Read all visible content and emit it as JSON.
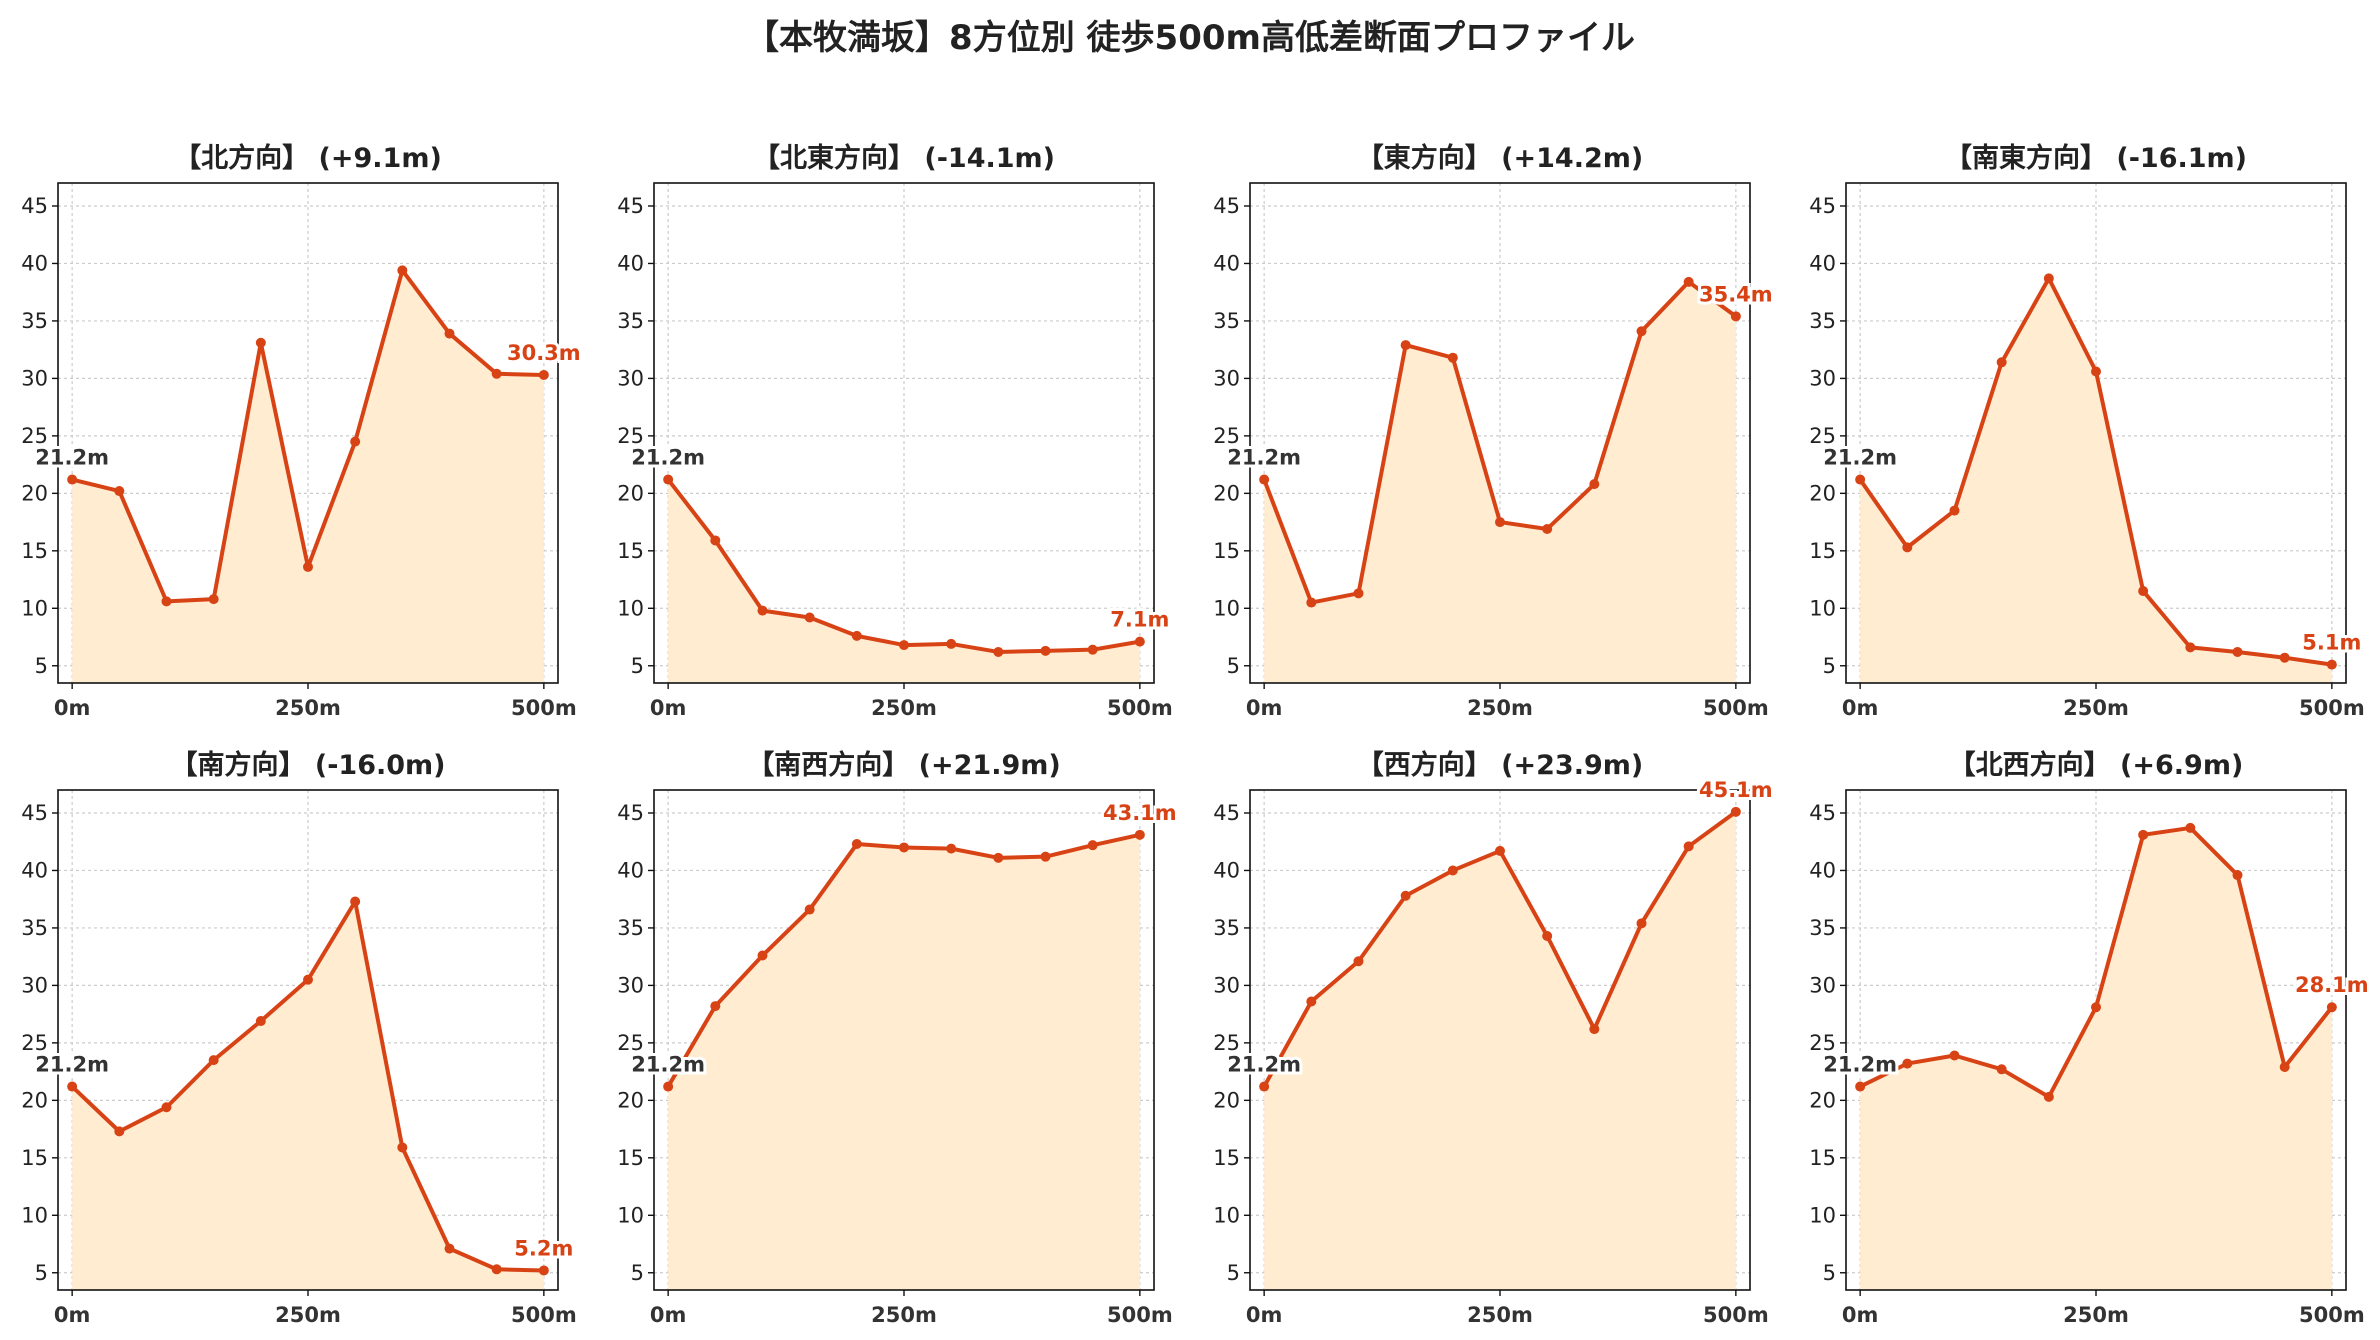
{
  "title": "【本牧満坂】8方位別 徒歩500m高低差断面プロファイル",
  "colors": {
    "line": "#d84315",
    "fill": "#ffecd1",
    "grid": "#cccccc",
    "start_label": "#333333",
    "end_label": "#d84315"
  },
  "chart_data": [
    {
      "type": "area",
      "title": "【北方向】 (+9.1m)",
      "x": [
        0,
        50,
        100,
        150,
        200,
        250,
        300,
        350,
        400,
        450,
        500
      ],
      "values": [
        21.2,
        20.2,
        10.6,
        10.8,
        33.1,
        13.6,
        24.5,
        39.4,
        33.9,
        30.4,
        30.3
      ],
      "start_label": "21.2m",
      "end_label": "30.3m",
      "x_ticks": [
        "0m",
        "250m",
        "500m"
      ],
      "y_ticks": [
        5,
        10,
        15,
        20,
        25,
        30,
        35,
        40,
        45
      ],
      "ylim": [
        3.5,
        47
      ],
      "grid": true
    },
    {
      "type": "area",
      "title": "【北東方向】 (-14.1m)",
      "x": [
        0,
        50,
        100,
        150,
        200,
        250,
        300,
        350,
        400,
        450,
        500
      ],
      "values": [
        21.2,
        15.9,
        9.8,
        9.2,
        7.6,
        6.8,
        6.9,
        6.2,
        6.3,
        6.4,
        7.1
      ],
      "start_label": "21.2m",
      "end_label": "7.1m",
      "x_ticks": [
        "0m",
        "250m",
        "500m"
      ],
      "y_ticks": [
        5,
        10,
        15,
        20,
        25,
        30,
        35,
        40,
        45
      ],
      "ylim": [
        3.5,
        47
      ],
      "grid": true
    },
    {
      "type": "area",
      "title": "【東方向】 (+14.2m)",
      "x": [
        0,
        50,
        100,
        150,
        200,
        250,
        300,
        350,
        400,
        450,
        500
      ],
      "values": [
        21.2,
        10.5,
        11.3,
        32.9,
        31.8,
        17.5,
        16.9,
        20.8,
        34.1,
        38.4,
        35.4
      ],
      "start_label": "21.2m",
      "end_label": "35.4m",
      "x_ticks": [
        "0m",
        "250m",
        "500m"
      ],
      "y_ticks": [
        5,
        10,
        15,
        20,
        25,
        30,
        35,
        40,
        45
      ],
      "ylim": [
        3.5,
        47
      ],
      "grid": true
    },
    {
      "type": "area",
      "title": "【南東方向】 (-16.1m)",
      "x": [
        0,
        50,
        100,
        150,
        200,
        250,
        300,
        350,
        400,
        450,
        500
      ],
      "values": [
        21.2,
        15.3,
        18.5,
        31.4,
        38.7,
        30.6,
        11.5,
        6.6,
        6.2,
        5.7,
        5.1
      ],
      "start_label": "21.2m",
      "end_label": "5.1m",
      "x_ticks": [
        "0m",
        "250m",
        "500m"
      ],
      "y_ticks": [
        5,
        10,
        15,
        20,
        25,
        30,
        35,
        40,
        45
      ],
      "ylim": [
        3.5,
        47
      ],
      "grid": true
    },
    {
      "type": "area",
      "title": "【南方向】 (-16.0m)",
      "x": [
        0,
        50,
        100,
        150,
        200,
        250,
        300,
        350,
        400,
        450,
        500
      ],
      "values": [
        21.2,
        17.3,
        19.4,
        23.5,
        26.9,
        30.5,
        37.3,
        15.9,
        7.1,
        5.3,
        5.2
      ],
      "start_label": "21.2m",
      "end_label": "5.2m",
      "x_ticks": [
        "0m",
        "250m",
        "500m"
      ],
      "y_ticks": [
        5,
        10,
        15,
        20,
        25,
        30,
        35,
        40,
        45
      ],
      "ylim": [
        3.5,
        47
      ],
      "grid": true
    },
    {
      "type": "area",
      "title": "【南西方向】 (+21.9m)",
      "x": [
        0,
        50,
        100,
        150,
        200,
        250,
        300,
        350,
        400,
        450,
        500
      ],
      "values": [
        21.2,
        28.2,
        32.6,
        36.6,
        42.3,
        42.0,
        41.9,
        41.1,
        41.2,
        42.2,
        43.1
      ],
      "start_label": "21.2m",
      "end_label": "43.1m",
      "x_ticks": [
        "0m",
        "250m",
        "500m"
      ],
      "y_ticks": [
        5,
        10,
        15,
        20,
        25,
        30,
        35,
        40,
        45
      ],
      "ylim": [
        3.5,
        47
      ],
      "grid": true
    },
    {
      "type": "area",
      "title": "【西方向】 (+23.9m)",
      "x": [
        0,
        50,
        100,
        150,
        200,
        250,
        300,
        350,
        400,
        450,
        500
      ],
      "values": [
        21.2,
        28.6,
        32.1,
        37.8,
        40.0,
        41.7,
        34.3,
        26.2,
        35.4,
        42.1,
        45.1
      ],
      "start_label": "21.2m",
      "end_label": "45.1m",
      "x_ticks": [
        "0m",
        "250m",
        "500m"
      ],
      "y_ticks": [
        5,
        10,
        15,
        20,
        25,
        30,
        35,
        40,
        45
      ],
      "ylim": [
        3.5,
        47
      ],
      "grid": true
    },
    {
      "type": "area",
      "title": "【北西方向】 (+6.9m)",
      "x": [
        0,
        50,
        100,
        150,
        200,
        250,
        300,
        350,
        400,
        450,
        500
      ],
      "values": [
        21.2,
        23.2,
        23.9,
        22.7,
        20.3,
        28.1,
        43.1,
        43.7,
        39.6,
        22.9,
        28.1
      ],
      "start_label": "21.2m",
      "end_label": "28.1m",
      "x_ticks": [
        "0m",
        "250m",
        "500m"
      ],
      "y_ticks": [
        5,
        10,
        15,
        20,
        25,
        30,
        35,
        40,
        45
      ],
      "ylim": [
        3.5,
        47
      ],
      "grid": true
    }
  ]
}
